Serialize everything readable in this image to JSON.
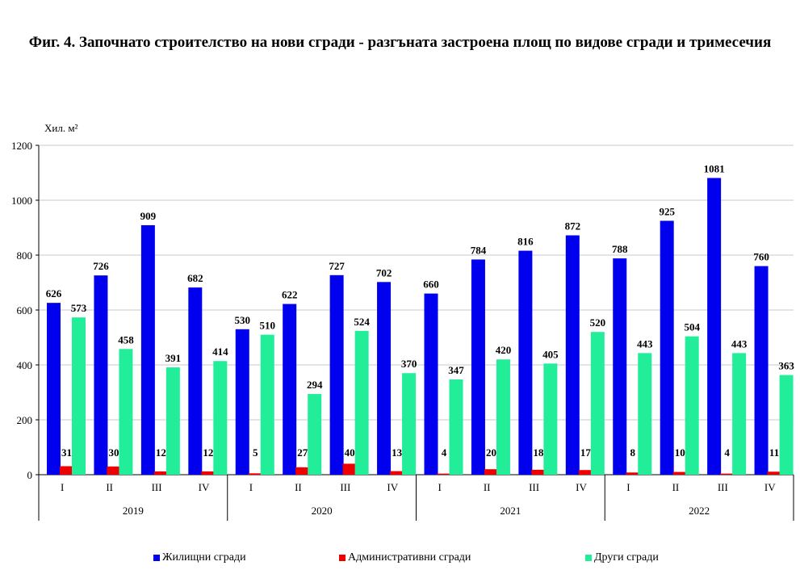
{
  "chart_data": {
    "type": "bar",
    "title": "Фиг. 4. Започнато строителство на нови сгради - разгъната застроена площ по видове сгради и тримесечия",
    "ylabel": "Хил. м²",
    "xlabel": "",
    "ylim": [
      0,
      1200
    ],
    "yticks": [
      0,
      200,
      400,
      600,
      800,
      1000,
      1200
    ],
    "grid": true,
    "legend_position": "bottom",
    "categories": [
      "I",
      "II",
      "III",
      "IV",
      "I",
      "II",
      "III",
      "IV",
      "I",
      "II",
      "III",
      "IV",
      "I",
      "II",
      "III",
      "IV"
    ],
    "years": [
      "2019",
      "2020",
      "2021",
      "2022"
    ],
    "series": [
      {
        "name": "Жилищни сгради",
        "color": "#0000ee",
        "values": [
          626,
          726,
          909,
          682,
          530,
          622,
          727,
          702,
          660,
          784,
          816,
          872,
          788,
          925,
          1081,
          760
        ]
      },
      {
        "name": "Административни сгради",
        "color": "#ee0000",
        "values": [
          31,
          30,
          12,
          12,
          5,
          27,
          40,
          13,
          4,
          20,
          18,
          17,
          8,
          10,
          4,
          11
        ]
      },
      {
        "name": "Други сгради",
        "color": "#22ee99",
        "values": [
          573,
          458,
          391,
          414,
          510,
          294,
          524,
          370,
          347,
          420,
          405,
          520,
          443,
          504,
          443,
          363
        ]
      }
    ]
  }
}
